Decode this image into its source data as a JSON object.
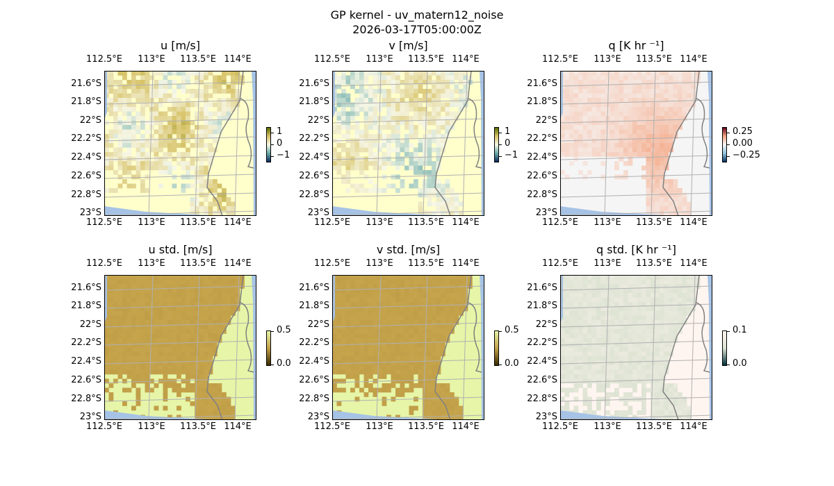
{
  "title": "GP kernel - uv_matern12_noise",
  "subtitle": "2026-03-17T05:00:00Z",
  "lon_ticks": [
    "112.5°E",
    "113°E",
    "113.5°E",
    "114°E"
  ],
  "lat_ticks": [
    "21.6°S",
    "21.8°S",
    "22°S",
    "22.2°S",
    "22.4°S",
    "22.6°S",
    "22.8°S",
    "23°S"
  ],
  "panels": [
    {
      "title": "u [m/s]",
      "cbar_ticks": [
        "1",
        "0",
        "−1"
      ],
      "cmap": [
        "#0b2a5e",
        "#6aaca8",
        "#f7f7e6",
        "#d8c46a",
        "#5a6e00"
      ],
      "bg": "#ffffcc",
      "kind": "div",
      "seed": 1
    },
    {
      "title": "v [m/s]",
      "cbar_ticks": [
        "1",
        "0",
        "−1"
      ],
      "cmap": [
        "#0b2a5e",
        "#6aaca8",
        "#f7f7e6",
        "#d8c46a",
        "#5a6e00"
      ],
      "bg": "#ffffcc",
      "kind": "div",
      "seed": 2
    },
    {
      "title": "q [K hr ⁻¹]",
      "cbar_ticks": [
        "0.25",
        "0.00",
        "−0.25"
      ],
      "cmap": [
        "#053061",
        "#92c5de",
        "#f7f7f7",
        "#f4a582",
        "#67001f"
      ],
      "bg": "#f5f5f5",
      "kind": "q",
      "seed": 3
    },
    {
      "title": "u std. [m/s]",
      "cbar_ticks": [
        "0.5",
        "0.0"
      ],
      "cmap": [
        "#3b2a00",
        "#c4a24a",
        "#e6f5a8"
      ],
      "bg": "#e6f5a8",
      "kind": "std",
      "seed": 4
    },
    {
      "title": "v std. [m/s]",
      "cbar_ticks": [
        "0.5",
        "0.0"
      ],
      "cmap": [
        "#3b2a00",
        "#c4a24a",
        "#e6f5a8"
      ],
      "bg": "#e6f5a8",
      "kind": "std",
      "seed": 5
    },
    {
      "title": "q std. [K hr ⁻¹]",
      "cbar_ticks": [
        "0.1",
        "0.0"
      ],
      "cmap": [
        "#00303a",
        "#dde3d3",
        "#fff5f0"
      ],
      "bg": "#fff5f0",
      "kind": "qstd",
      "seed": 6
    }
  ],
  "colors": {
    "ocean_edge": "#a6c3e6",
    "coast": "#808080",
    "grid": "#b0b0b0"
  }
}
